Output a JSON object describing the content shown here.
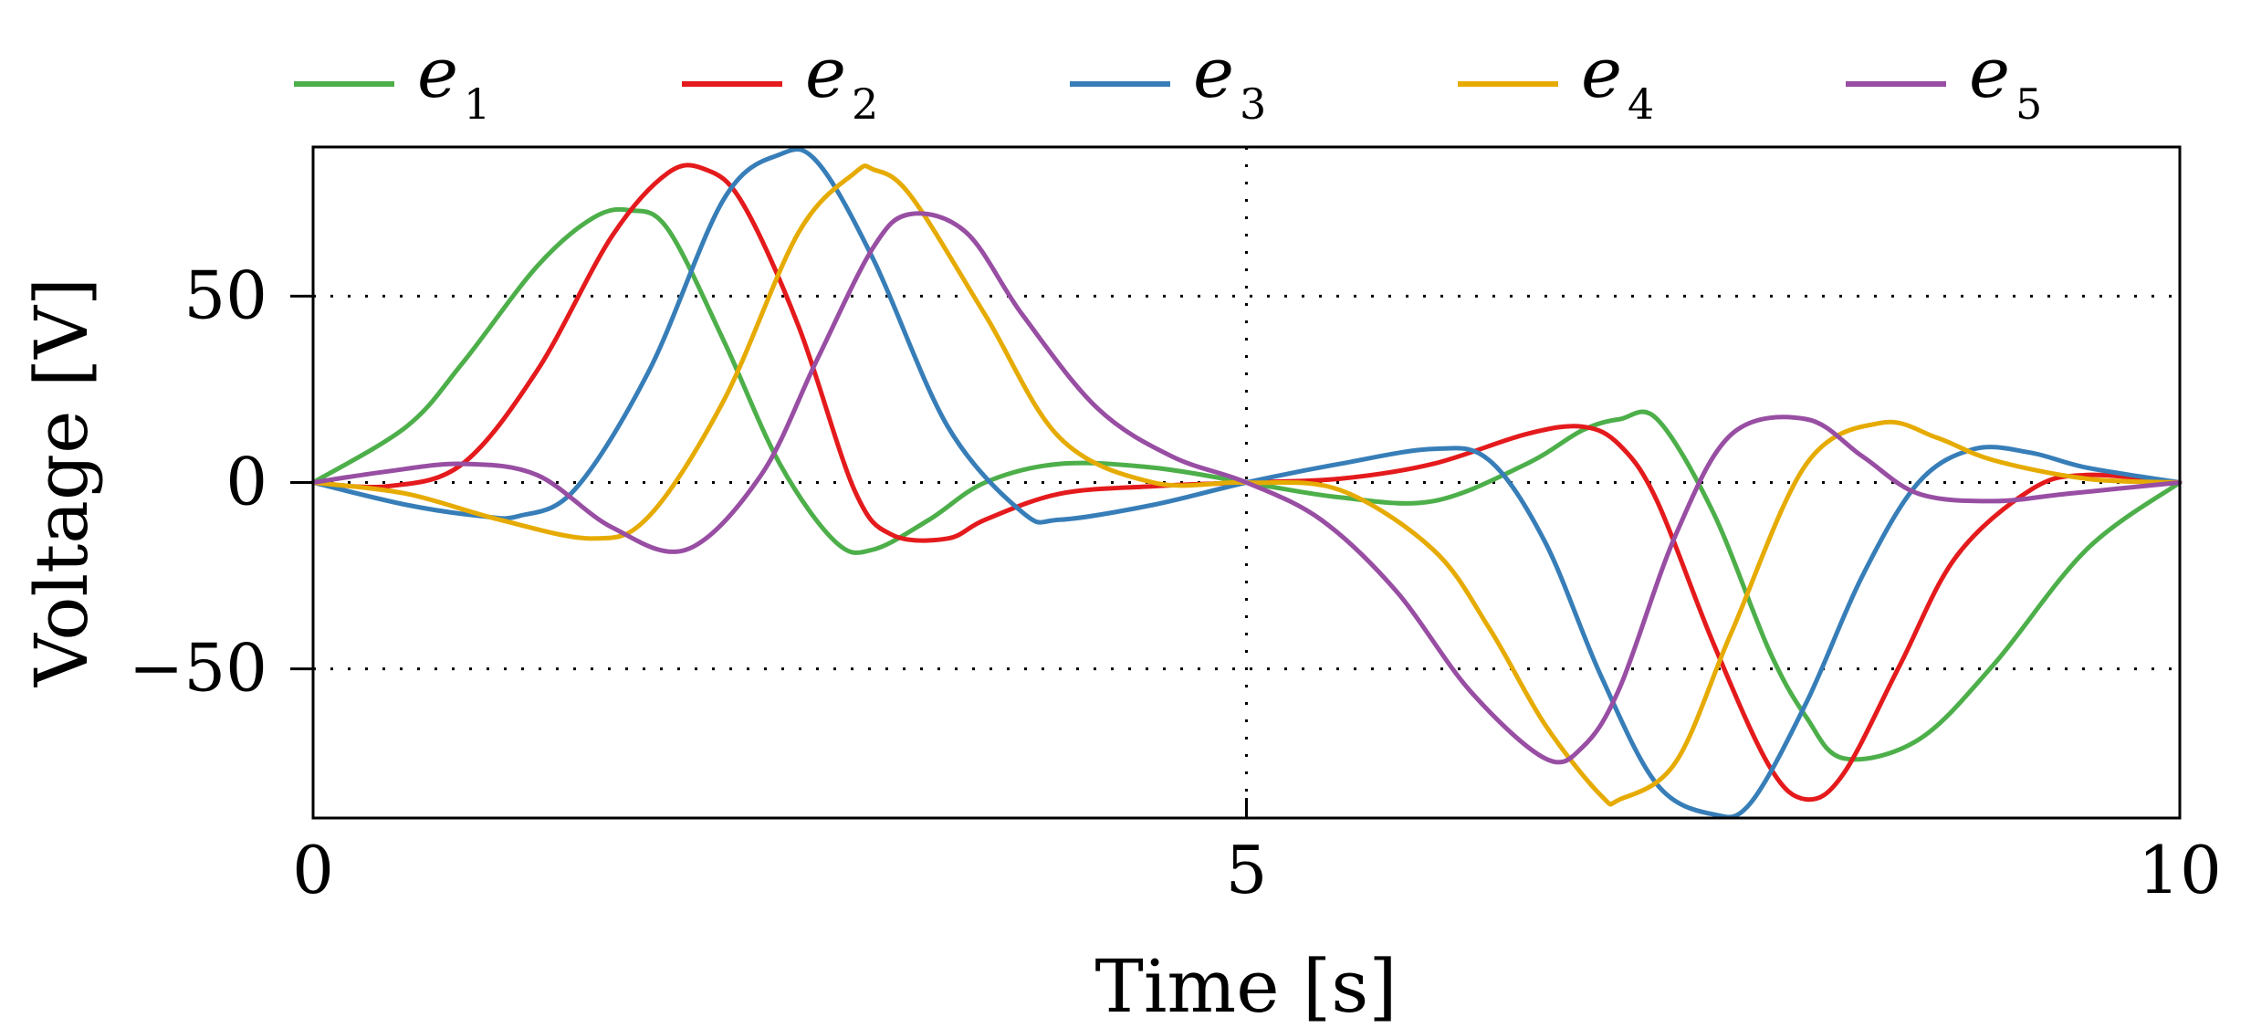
{
  "chart_data": {
    "type": "line",
    "title": "",
    "xlabel": "Time [s]",
    "ylabel": "Voltage [V]",
    "xlim": [
      0,
      10
    ],
    "ylim": [
      -90,
      90
    ],
    "xticks": [
      0,
      5,
      10
    ],
    "xtick_labels": [
      "0",
      "5",
      "10"
    ],
    "yticks": [
      -50,
      0,
      50
    ],
    "ytick_labels": [
      "−50",
      "0",
      "50"
    ],
    "grid": "dotted",
    "legend_position": "top",
    "series": [
      {
        "name": "e",
        "subscript": "1",
        "color": "#4daf4a",
        "x": [
          0,
          0.5,
          0.8,
          1.2,
          1.5,
          1.7,
          1.9,
          2.2,
          2.5,
          2.8,
          3.0,
          3.3,
          3.6,
          4.0,
          4.5,
          5.0,
          5.5,
          6.0,
          6.5,
          6.8,
          7.0,
          7.2,
          7.5,
          7.8,
          8.0,
          8.2,
          8.6,
          9.0,
          9.5,
          10
        ],
        "y": [
          0,
          15,
          32,
          58,
          71,
          73,
          68,
          38,
          5,
          -16,
          -18,
          -10,
          0,
          5,
          4,
          0,
          -4,
          -5,
          5,
          14,
          17,
          17,
          -8,
          -45,
          -63,
          -74,
          -69,
          -49,
          -18,
          0
        ]
      },
      {
        "name": "e",
        "subscript": "2",
        "color": "#e41a1c",
        "x": [
          0,
          0.4,
          0.8,
          1.2,
          1.6,
          1.9,
          2.1,
          2.3,
          2.6,
          2.9,
          3.1,
          3.4,
          3.6,
          4.0,
          4.5,
          5.0,
          5.5,
          6.0,
          6.5,
          6.8,
          7.0,
          7.2,
          7.5,
          7.8,
          8.0,
          8.2,
          8.5,
          8.8,
          9.2,
          9.5,
          10
        ],
        "y": [
          0,
          -1,
          5,
          30,
          66,
          83,
          84,
          75,
          42,
          -2,
          -14,
          -15,
          -10,
          -3,
          -1,
          0,
          1,
          5,
          13,
          15,
          10,
          -5,
          -43,
          -76,
          -85,
          -78,
          -49,
          -20,
          -2,
          2,
          0
        ]
      },
      {
        "name": "e",
        "subscript": "3",
        "color": "#377eb8",
        "x": [
          0,
          0.5,
          0.9,
          1.1,
          1.4,
          1.8,
          2.2,
          2.5,
          2.7,
          3.0,
          3.4,
          3.8,
          4.0,
          4.5,
          5.0,
          5.5,
          6.0,
          6.3,
          6.6,
          6.9,
          7.2,
          7.5,
          7.7,
          8.0,
          8.3,
          8.6,
          8.9,
          9.2,
          9.5,
          10
        ],
        "y": [
          0,
          -6,
          -9,
          -9,
          -2,
          30,
          76,
          88,
          86,
          60,
          15,
          -8,
          -10,
          -6,
          0,
          5,
          9,
          6,
          -16,
          -52,
          -81,
          -89,
          -86,
          -59,
          -25,
          0,
          9,
          8,
          4,
          0
        ]
      },
      {
        "name": "e",
        "subscript": "4",
        "color": "#e6ab02",
        "x": [
          0,
          0.5,
          1.0,
          1.5,
          1.8,
          2.2,
          2.6,
          2.9,
          3.0,
          3.2,
          3.6,
          4.0,
          4.5,
          5.0,
          5.5,
          6.0,
          6.3,
          6.6,
          6.9,
          7.0,
          7.3,
          7.6,
          8.0,
          8.4,
          8.7,
          9.0,
          9.5,
          10
        ],
        "y": [
          0,
          -3,
          -10,
          -15,
          -9,
          22,
          67,
          83,
          84,
          77,
          45,
          12,
          0,
          0,
          -2,
          -18,
          -39,
          -65,
          -84,
          -85,
          -75,
          -40,
          5,
          16,
          12,
          6,
          1,
          0
        ]
      },
      {
        "name": "e",
        "subscript": "5",
        "color": "#984ea3",
        "x": [
          0,
          0.4,
          0.8,
          1.2,
          1.6,
          2.0,
          2.4,
          2.7,
          3.0,
          3.2,
          3.5,
          3.8,
          4.2,
          4.6,
          5.0,
          5.4,
          5.8,
          6.2,
          6.6,
          6.8,
          7.0,
          7.3,
          7.6,
          8.0,
          8.3,
          8.6,
          9.0,
          9.4,
          10
        ],
        "y": [
          0,
          3,
          5,
          2,
          -12,
          -18,
          2,
          33,
          63,
          72,
          67,
          45,
          20,
          7,
          0,
          -10,
          -29,
          -56,
          -74,
          -71,
          -55,
          -14,
          13,
          17,
          7,
          -3,
          -5,
          -3,
          0
        ]
      }
    ]
  }
}
